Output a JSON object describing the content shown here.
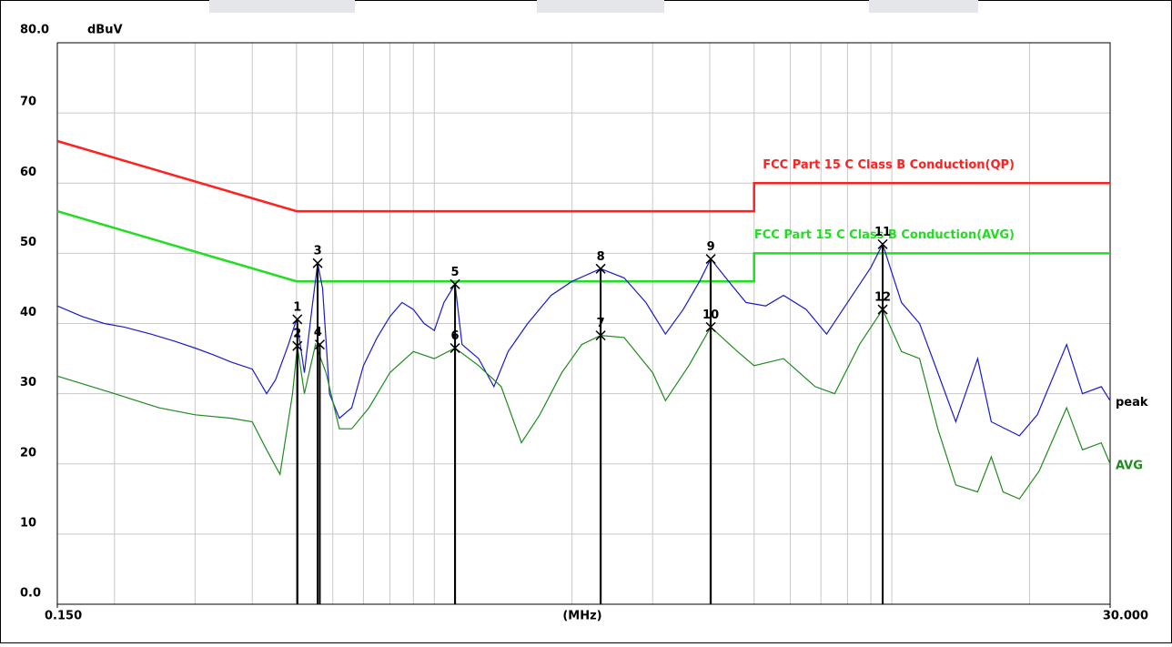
{
  "chart_data": {
    "type": "line",
    "ylabel": "dBuV",
    "xlabel": "(MHz)",
    "log_x": true,
    "grid": true,
    "xlim": [
      0.15,
      30
    ],
    "ylim": [
      0,
      80
    ],
    "xticks": [
      {
        "value": 0.15,
        "label": "0.150"
      },
      {
        "value": 30,
        "label": "30.000"
      }
    ],
    "xgrid": [
      0.2,
      0.3,
      0.4,
      0.5,
      0.6,
      0.7,
      0.8,
      0.9,
      1,
      2,
      3,
      4,
      5,
      6,
      7,
      8,
      9,
      10,
      20
    ],
    "yticks": [
      {
        "value": 0,
        "label": "0.0"
      },
      10,
      20,
      30,
      40,
      50,
      60,
      70,
      {
        "value": 80,
        "label": "80.0"
      }
    ],
    "series": [
      {
        "name": "FCC Part 15 C Class B Conduction(QP)",
        "color": "#ff2020",
        "role": "limit",
        "x": [
          0.15,
          0.5,
          5,
          5,
          30
        ],
        "values": [
          66,
          56,
          56,
          60,
          60
        ]
      },
      {
        "name": "FCC Part 15 C Class B Conduction(AVG)",
        "color": "#22dd22",
        "role": "limit",
        "x": [
          0.15,
          0.5,
          5,
          5,
          30
        ],
        "values": [
          56,
          46,
          46,
          50,
          50
        ]
      },
      {
        "name": "peak",
        "color": "#1a1acc",
        "role": "trace",
        "x": [
          0.15,
          0.17,
          0.19,
          0.21,
          0.24,
          0.27,
          0.3,
          0.33,
          0.36,
          0.4,
          0.43,
          0.45,
          0.48,
          0.5,
          0.52,
          0.54,
          0.556,
          0.57,
          0.59,
          0.62,
          0.66,
          0.7,
          0.75,
          0.8,
          0.85,
          0.9,
          0.95,
          1.0,
          1.05,
          1.11,
          1.15,
          1.25,
          1.35,
          1.45,
          1.6,
          1.8,
          2.0,
          2.31,
          2.6,
          2.9,
          3.2,
          3.5,
          3.8,
          4.02,
          4.4,
          4.8,
          5.3,
          5.8,
          6.5,
          7.2,
          8.0,
          9.0,
          9.55,
          10.5,
          11.5,
          12.6,
          13.8,
          15.4,
          16.5,
          19,
          20.8,
          24.1,
          26.1,
          28.7,
          30
        ],
        "values": [
          42.5,
          41,
          40,
          39.5,
          38.5,
          37.5,
          36.5,
          35.5,
          34.5,
          33.5,
          30,
          32,
          37,
          40.6,
          33,
          42,
          48.6,
          45,
          30,
          26.5,
          28,
          34,
          38,
          41,
          43,
          42,
          40,
          39,
          43,
          45.6,
          37,
          35,
          31,
          36,
          40,
          44,
          46,
          47.8,
          46.5,
          43,
          38.5,
          42,
          46,
          49.2,
          46,
          43,
          42.5,
          44,
          42,
          38.5,
          43,
          48,
          51.3,
          43,
          40,
          33,
          26,
          35,
          26,
          24,
          27,
          37,
          30,
          31,
          29
        ]
      },
      {
        "name": "AVG",
        "color": "#1f8a1f",
        "role": "trace",
        "x": [
          0.15,
          0.2,
          0.25,
          0.3,
          0.36,
          0.4,
          0.43,
          0.46,
          0.49,
          0.502,
          0.52,
          0.55,
          0.58,
          0.62,
          0.66,
          0.72,
          0.8,
          0.9,
          1.0,
          1.11,
          1.25,
          1.4,
          1.55,
          1.7,
          1.9,
          2.1,
          2.31,
          2.6,
          3.0,
          3.2,
          3.6,
          4.02,
          4.6,
          5.0,
          5.8,
          6.8,
          7.5,
          8.5,
          9.55,
          10.5,
          11.5,
          12.6,
          13.8,
          15.4,
          16.5,
          17.5,
          19,
          21,
          24.1,
          26.1,
          28.7,
          30
        ],
        "values": [
          32.5,
          30,
          28,
          27,
          26.5,
          26,
          22,
          18.5,
          30,
          36.8,
          30,
          37,
          33,
          25,
          25,
          28,
          33,
          36,
          35,
          36.5,
          34,
          31,
          23,
          27,
          33,
          37,
          38.3,
          38,
          33,
          29,
          34,
          39.5,
          36,
          34,
          35,
          31,
          30,
          37,
          42,
          36,
          35,
          25,
          17,
          16,
          21,
          16,
          15,
          19,
          28,
          22,
          23,
          20
        ]
      }
    ],
    "markers": {
      "labels": [
        "1",
        "2",
        "3",
        "4",
        "5",
        "6",
        "7",
        "8",
        "9",
        "10",
        "11",
        "12"
      ],
      "x": [
        0.502,
        0.502,
        0.556,
        0.562,
        1.11,
        1.11,
        2.31,
        2.31,
        4.02,
        4.02,
        9.55,
        9.55
      ],
      "values": [
        40.6,
        36.8,
        48.6,
        37,
        45.6,
        36.5,
        38.3,
        47.8,
        49.2,
        39.5,
        51.3,
        42
      ]
    }
  }
}
